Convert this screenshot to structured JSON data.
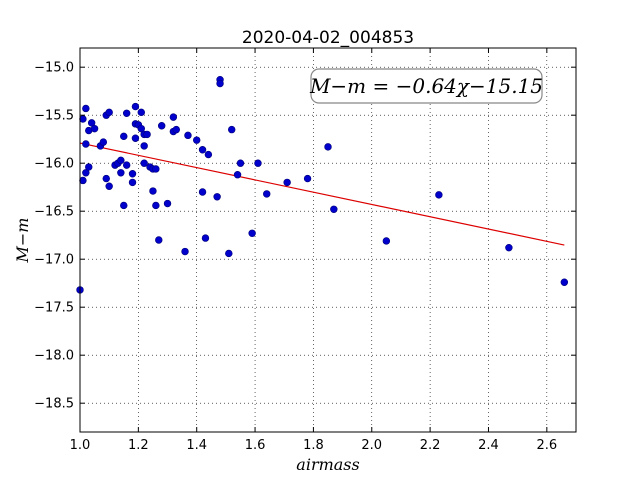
{
  "chart_data": {
    "type": "scatter",
    "title": "2020-04-02_004853",
    "xlabel": "airmass",
    "ylabel": "M−m",
    "xlim": [
      1.0,
      2.7
    ],
    "ylim": [
      -18.8,
      -14.8
    ],
    "y_inverted": true,
    "grid": true,
    "x_ticks": [
      "1.0",
      "1.2",
      "1.4",
      "1.6",
      "1.8",
      "2.0",
      "2.2",
      "2.4",
      "2.6"
    ],
    "y_ticks": [
      "−15.0",
      "−15.5",
      "−16.0",
      "−16.5",
      "−17.0",
      "−17.5",
      "−18.0",
      "−18.5"
    ],
    "annotation": "M−m = −0.64χ−15.15",
    "fit": {
      "slope": -0.64,
      "intercept": -15.15,
      "x_range": [
        1.0,
        2.66
      ],
      "color": "#dd0000"
    },
    "points_color": "#0000cc",
    "points": [
      [
        1.0,
        -17.32
      ],
      [
        1.01,
        -15.54
      ],
      [
        1.01,
        -16.18
      ],
      [
        1.02,
        -15.8
      ],
      [
        1.02,
        -16.1
      ],
      [
        1.02,
        -15.43
      ],
      [
        1.03,
        -15.66
      ],
      [
        1.03,
        -16.04
      ],
      [
        1.04,
        -15.58
      ],
      [
        1.05,
        -15.64
      ],
      [
        1.07,
        -15.82
      ],
      [
        1.08,
        -15.78
      ],
      [
        1.09,
        -16.16
      ],
      [
        1.09,
        -15.5
      ],
      [
        1.1,
        -15.47
      ],
      [
        1.1,
        -16.24
      ],
      [
        1.12,
        -16.02
      ],
      [
        1.13,
        -16.0
      ],
      [
        1.14,
        -15.97
      ],
      [
        1.14,
        -16.1
      ],
      [
        1.15,
        -15.72
      ],
      [
        1.15,
        -16.44
      ],
      [
        1.16,
        -16.02
      ],
      [
        1.16,
        -15.48
      ],
      [
        1.18,
        -16.11
      ],
      [
        1.18,
        -16.2
      ],
      [
        1.19,
        -15.74
      ],
      [
        1.19,
        -15.59
      ],
      [
        1.19,
        -15.41
      ],
      [
        1.2,
        -15.6
      ],
      [
        1.21,
        -15.64
      ],
      [
        1.21,
        -15.47
      ],
      [
        1.22,
        -15.7
      ],
      [
        1.22,
        -15.82
      ],
      [
        1.22,
        -16.0
      ],
      [
        1.23,
        -15.7
      ],
      [
        1.24,
        -16.04
      ],
      [
        1.25,
        -16.06
      ],
      [
        1.25,
        -16.29
      ],
      [
        1.26,
        -16.44
      ],
      [
        1.26,
        -16.06
      ],
      [
        1.27,
        -16.8
      ],
      [
        1.28,
        -15.61
      ],
      [
        1.3,
        -16.42
      ],
      [
        1.32,
        -15.67
      ],
      [
        1.32,
        -15.52
      ],
      [
        1.33,
        -15.65
      ],
      [
        1.36,
        -16.92
      ],
      [
        1.37,
        -15.71
      ],
      [
        1.4,
        -15.76
      ],
      [
        1.42,
        -15.86
      ],
      [
        1.42,
        -16.3
      ],
      [
        1.43,
        -16.78
      ],
      [
        1.44,
        -15.91
      ],
      [
        1.47,
        -16.35
      ],
      [
        1.48,
        -15.13
      ],
      [
        1.48,
        -15.17
      ],
      [
        1.51,
        -16.94
      ],
      [
        1.52,
        -15.65
      ],
      [
        1.54,
        -16.12
      ],
      [
        1.55,
        -16.0
      ],
      [
        1.59,
        -16.73
      ],
      [
        1.61,
        -16.0
      ],
      [
        1.64,
        -16.32
      ],
      [
        1.71,
        -16.2
      ],
      [
        1.78,
        -16.16
      ],
      [
        1.85,
        -15.83
      ],
      [
        1.87,
        -16.48
      ],
      [
        2.05,
        -16.81
      ],
      [
        2.23,
        -16.33
      ],
      [
        2.47,
        -16.88
      ],
      [
        2.66,
        -17.24
      ]
    ]
  }
}
